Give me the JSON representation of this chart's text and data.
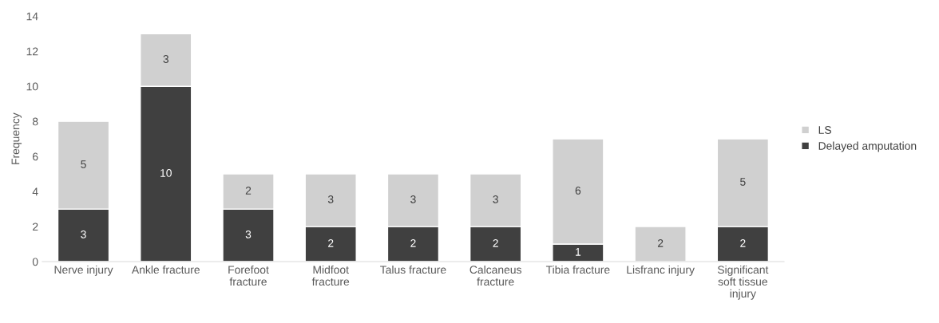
{
  "chart_data": {
    "type": "bar",
    "stacked": true,
    "ylabel": "Frequency",
    "categories": [
      "Nerve injury",
      "Ankle fracture",
      "Forefoot\nfracture",
      "Midfoot\nfracture",
      "Talus fracture",
      "Calcaneus\nfracture",
      "Tibia fracture",
      "Lisfranc injury",
      "Significant\nsoft tissue\ninjury"
    ],
    "series": [
      {
        "name": "Delayed amputation",
        "color": "#404040",
        "values": [
          3,
          10,
          3,
          2,
          2,
          2,
          1,
          0,
          2
        ],
        "value_labels": [
          "3",
          "10",
          "3",
          "2",
          "2",
          "2",
          "1",
          null,
          "2"
        ]
      },
      {
        "name": "LS",
        "color": "#d0d0d0",
        "values": [
          5,
          3,
          2,
          3,
          3,
          3,
          6,
          2,
          5
        ],
        "value_labels": [
          "5",
          "3",
          "2",
          "3",
          "3",
          "3",
          "6",
          "2",
          "5"
        ]
      }
    ],
    "ylim": [
      0,
      14
    ],
    "yticks": [
      0,
      2,
      4,
      6,
      8,
      10,
      12,
      14
    ],
    "grid": false,
    "legend": "right"
  }
}
